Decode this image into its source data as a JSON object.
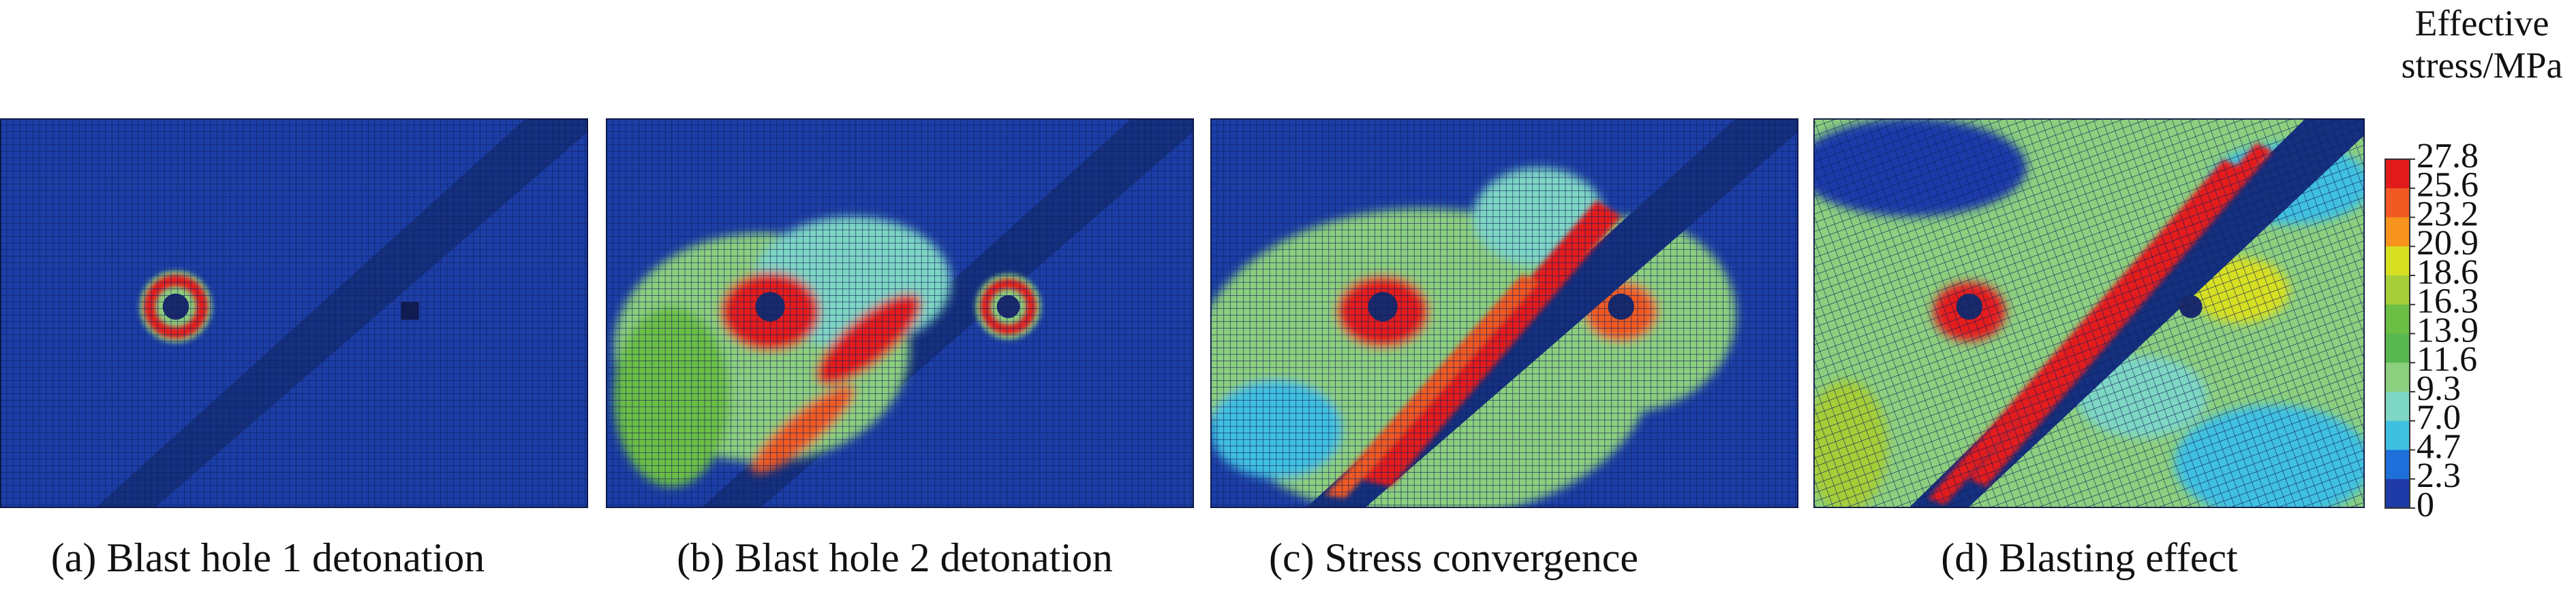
{
  "panels": [
    {
      "caption": "(a) Blast hole 1 detonation"
    },
    {
      "caption": "(b) Blast hole 2 detonation"
    },
    {
      "caption": "(c) Stress convergence"
    },
    {
      "caption": "(d) Blasting effect"
    }
  ],
  "legend": {
    "title": [
      "Effective",
      "stress/MPa"
    ],
    "ticks": [
      "27.8",
      "25.6",
      "23.2",
      "20.9",
      "18.6",
      "16.3",
      "13.9",
      "11.6",
      "9.3",
      "7.0",
      "4.7",
      "2.3",
      "0"
    ],
    "colors": [
      "#e31a1c",
      "#f05a22",
      "#f7941d",
      "#d7df23",
      "#a6ce39",
      "#6cbf45",
      "#58b84f",
      "#8ccf7e",
      "#7ed6c4",
      "#40c0e0",
      "#1e6fd9",
      "#1f3ba8"
    ]
  }
}
